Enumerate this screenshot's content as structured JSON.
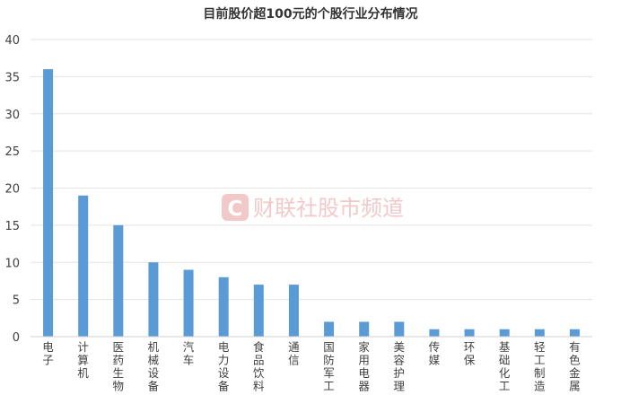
{
  "watermark": {
    "text": "财联社股市频道",
    "logo_letter": "C",
    "color": "#f2c9c9"
  },
  "chart_data": {
    "type": "bar",
    "title": "目前股价超100元的个股行业分布情况",
    "categories": [
      "电子",
      "计算机",
      "医药生物",
      "机械设备",
      "汽车",
      "电力设备",
      "食品饮料",
      "通信",
      "国防军工",
      "家用电器",
      "美容护理",
      "传媒",
      "环保",
      "基础化工",
      "轻工制造",
      "有色金属"
    ],
    "values": [
      36,
      19,
      15,
      10,
      9,
      8,
      7,
      7,
      2,
      2,
      2,
      1,
      1,
      1,
      1,
      1
    ],
    "xlabel": "",
    "ylabel": "",
    "ylim": [
      0,
      40
    ],
    "yticks": [
      0,
      5,
      10,
      15,
      20,
      25,
      30,
      35,
      40
    ],
    "grid": true,
    "bar_color": "#5b9bd5"
  }
}
